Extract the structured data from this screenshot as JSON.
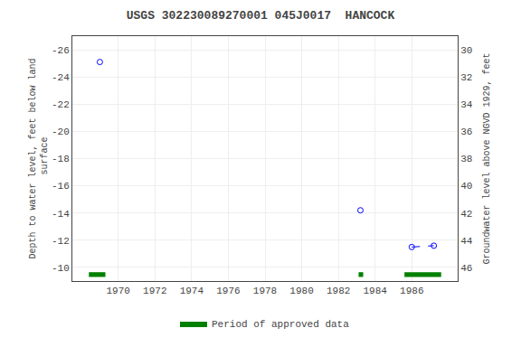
{
  "chart_data": {
    "type": "scatter",
    "title": "USGS 302230089270001 045J0017  HANCOCK",
    "y_label": "Depth to water level, feet below land\n surface",
    "y2_label": "Groundwater level above NGVD 1929, feet",
    "xlim": [
      1967.5,
      1988.5
    ],
    "xticks": [
      1970,
      1972,
      1974,
      1976,
      1978,
      1980,
      1982,
      1984,
      1986
    ],
    "ylim": [
      -9,
      -27
    ],
    "yticks": [
      -26,
      -24,
      -22,
      -20,
      -18,
      -16,
      -14,
      -12,
      -10
    ],
    "y2lim": [
      47,
      29
    ],
    "y2ticks": [
      46,
      44,
      42,
      40,
      38,
      36,
      34,
      32,
      30
    ],
    "grid": true,
    "legend": "bottom",
    "series": [
      {
        "type": "scatter",
        "marker": "open circle",
        "color": "#0000ff",
        "x": [
          1969.0,
          1983.2,
          1986.0,
          1987.2
        ],
        "values": [
          -25.1,
          -14.2,
          -11.5,
          -11.6
        ]
      },
      {
        "type": "line",
        "line_style": "dashed",
        "color": "#0000ff",
        "x": [
          1986.0,
          1987.2
        ],
        "values": [
          -11.5,
          -11.6
        ]
      },
      {
        "type": "area",
        "name": "Period of approved data",
        "color": "#008000",
        "periods": [
          {
            "x_start": 1968.4,
            "x_end": 1969.3,
            "y_bottom": -9.65,
            "y_top": -9.3
          },
          {
            "x_start": 1983.1,
            "x_end": 1983.35,
            "y_bottom": -9.65,
            "y_top": -9.3
          },
          {
            "x_start": 1985.6,
            "x_end": 1987.6,
            "y_bottom": -9.65,
            "y_top": -9.3
          }
        ]
      }
    ]
  }
}
